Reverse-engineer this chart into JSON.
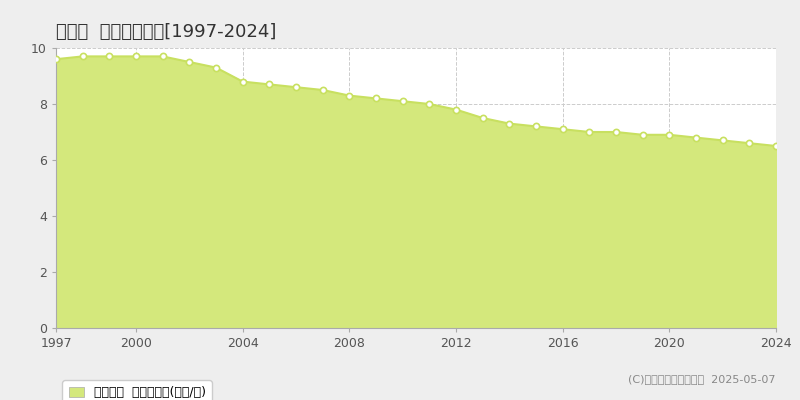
{
  "title": "平生町  基準地価推移[1997-2024]",
  "years": [
    1997,
    1998,
    1999,
    2000,
    2001,
    2002,
    2003,
    2004,
    2005,
    2006,
    2007,
    2008,
    2009,
    2010,
    2011,
    2012,
    2013,
    2014,
    2015,
    2016,
    2017,
    2018,
    2019,
    2020,
    2021,
    2022,
    2023,
    2024
  ],
  "values": [
    9.6,
    9.7,
    9.7,
    9.7,
    9.7,
    9.5,
    9.3,
    8.8,
    8.7,
    8.6,
    8.5,
    8.3,
    8.2,
    8.1,
    8.0,
    7.8,
    7.5,
    7.3,
    7.2,
    7.1,
    7.0,
    7.0,
    6.9,
    6.9,
    6.8,
    6.7,
    6.6,
    6.5
  ],
  "line_color": "#c8e060",
  "fill_color": "#d4e87c",
  "marker_face_color": "#ffffff",
  "marker_edge_color": "#c8e060",
  "background_color": "#eeeeee",
  "plot_bg_color": "#ffffff",
  "grid_color": "#cccccc",
  "ylim": [
    0,
    10
  ],
  "yticks": [
    0,
    2,
    4,
    6,
    8,
    10
  ],
  "xticks": [
    1997,
    2000,
    2004,
    2008,
    2012,
    2016,
    2020,
    2024
  ],
  "legend_label": "基準地価  平均坪単価(万円/坪)",
  "copyright_text": "(C)土地価格ドットコム  2025-05-07",
  "title_fontsize": 13,
  "tick_fontsize": 9,
  "legend_fontsize": 9,
  "copyright_fontsize": 8
}
